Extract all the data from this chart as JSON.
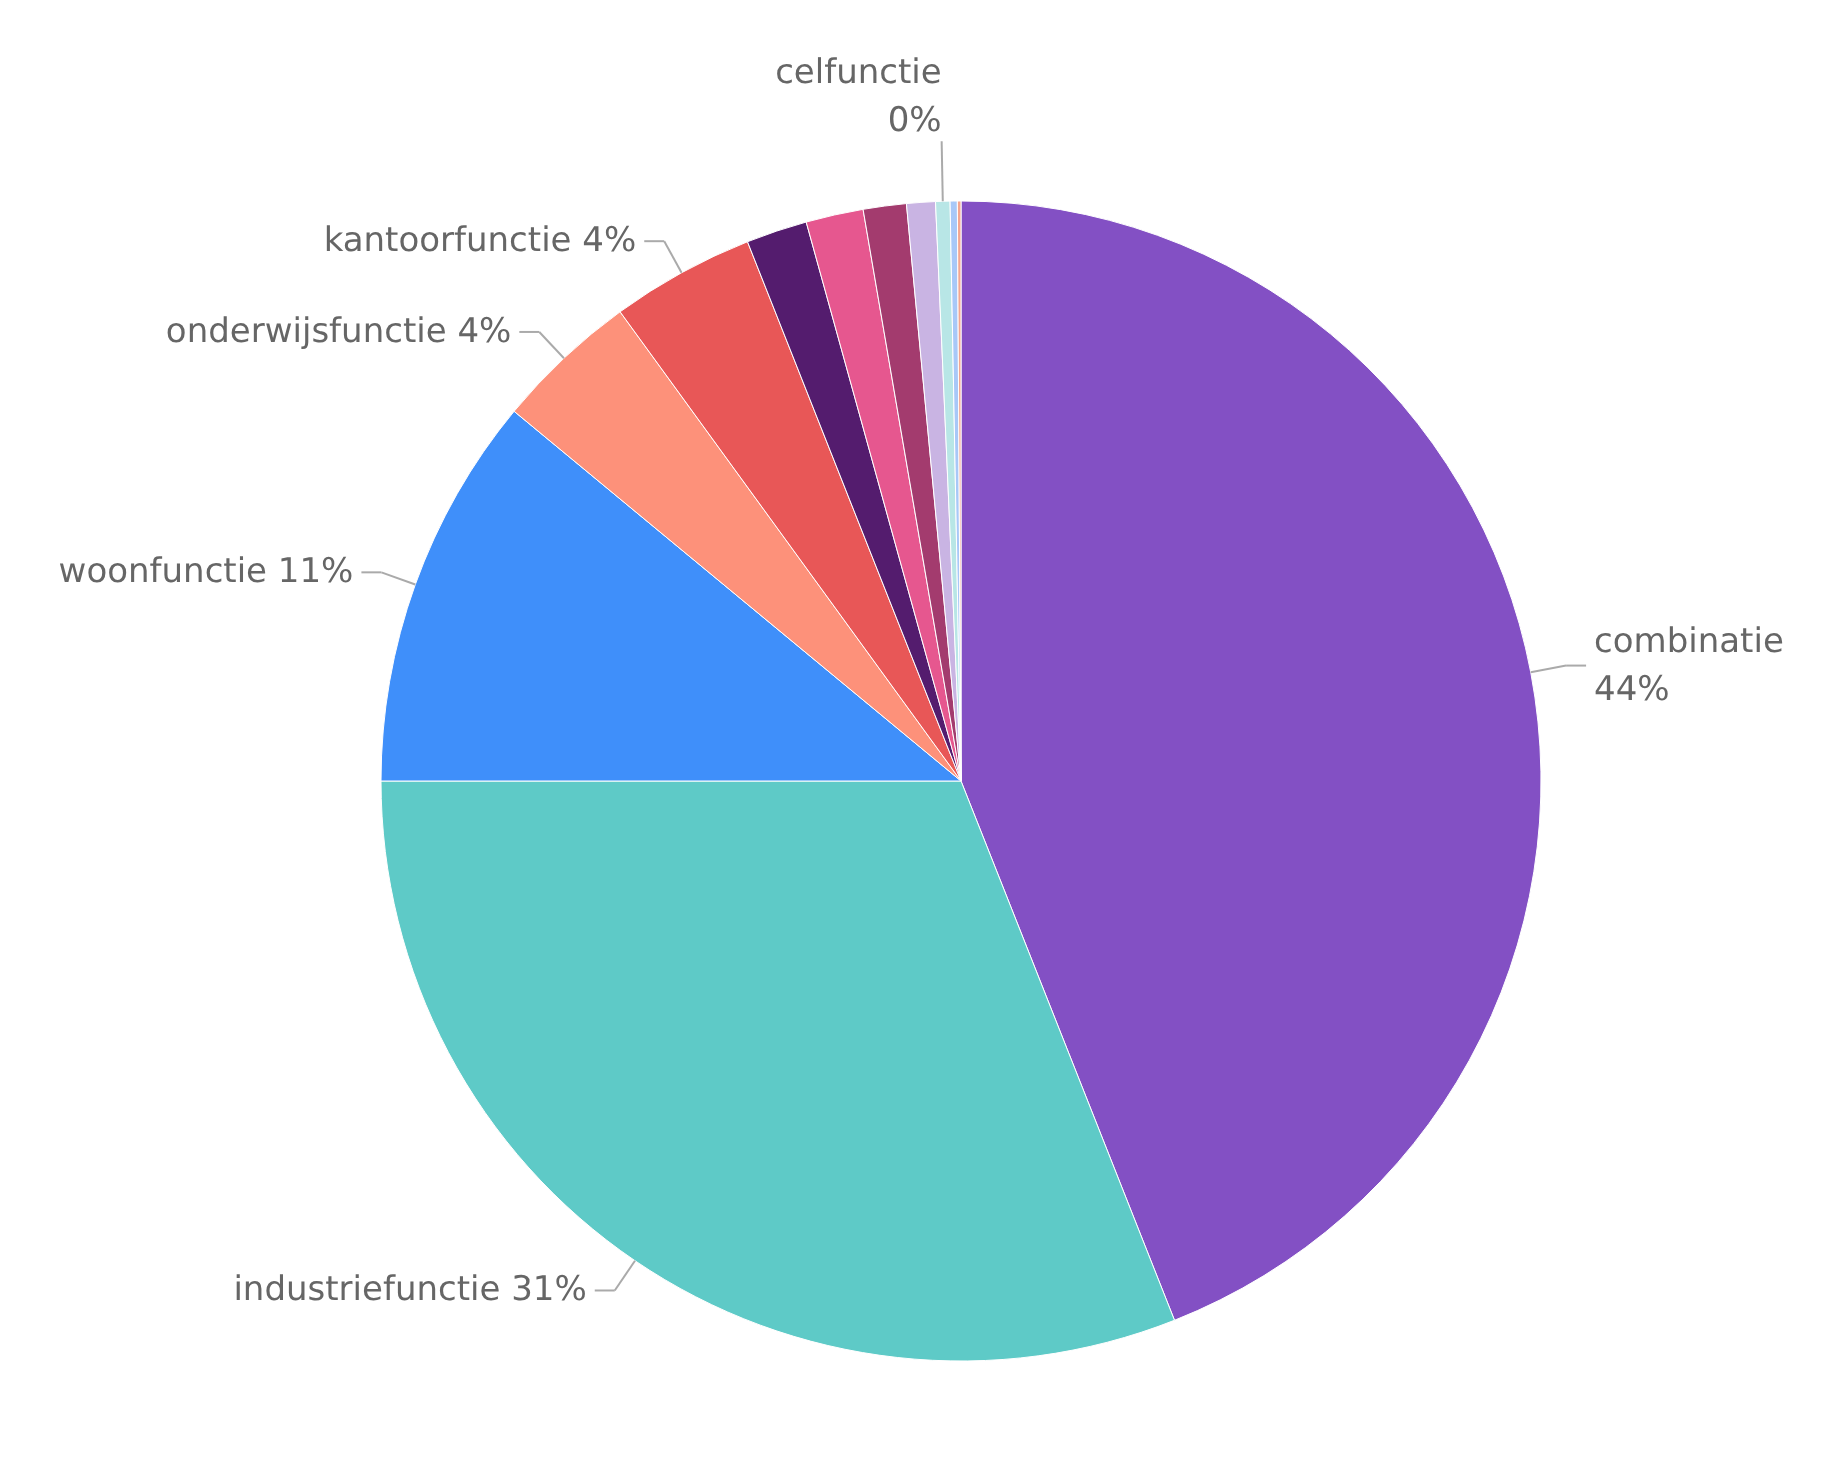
{
  "chart_data": {
    "type": "pie",
    "categories": [
      "combinatie",
      "industriefunctie",
      "woonfunctie",
      "onderwijsfunctie",
      "kantoorfunctie",
      null,
      null,
      null,
      null,
      "celfunctie",
      null,
      null
    ],
    "values": [
      44,
      31,
      11,
      4,
      4,
      1.7,
      1.6,
      1.2,
      0.8,
      0.4,
      0.2,
      0.1
    ],
    "value_labels": [
      "44%",
      "31%",
      "11%",
      "4%",
      "4%",
      null,
      null,
      null,
      null,
      "0%",
      null,
      null
    ],
    "colors": [
      "#8350c4",
      "#5ecac7",
      "#3f8ffa",
      "#fd917a",
      "#e85757",
      "#541c6e",
      "#e6578f",
      "#a33b6e",
      "#c9b4e3",
      "#b8e6e6",
      "#a8c8f8",
      "#f4a690"
    ]
  }
}
